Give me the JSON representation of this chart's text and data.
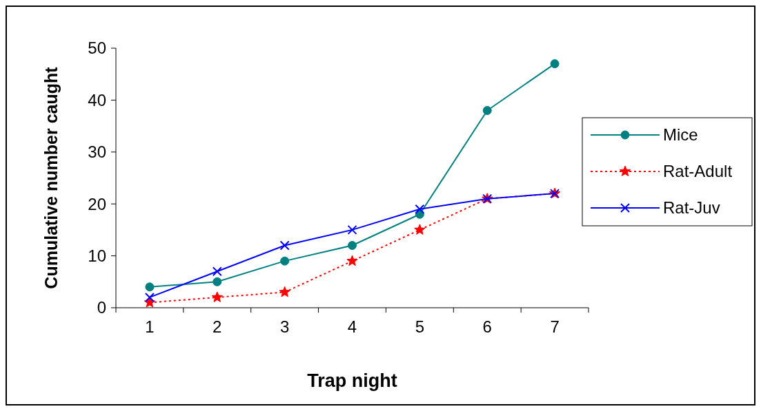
{
  "chart_data": {
    "type": "line",
    "xlabel": "Trap night",
    "ylabel": "Cumulative number caught",
    "categories": [
      "1",
      "2",
      "3",
      "4",
      "5",
      "6",
      "7"
    ],
    "ylim": [
      0,
      50
    ],
    "yticks": [
      0,
      10,
      20,
      30,
      40,
      50
    ],
    "grid": false,
    "legend": "right",
    "series": [
      {
        "name": "Mice",
        "color": "#008080",
        "marker": "circle",
        "line_style": "solid",
        "values": [
          4,
          5,
          9,
          12,
          18,
          38,
          47
        ]
      },
      {
        "name": "Rat-Adult",
        "color": "#ff0000",
        "marker": "star",
        "line_style": "dotted",
        "values": [
          1,
          2,
          3,
          9,
          15,
          21,
          22
        ]
      },
      {
        "name": "Rat-Juv",
        "color": "#0000ff",
        "marker": "cross",
        "line_style": "solid",
        "values": [
          2,
          7,
          12,
          15,
          19,
          21,
          22
        ]
      }
    ]
  }
}
